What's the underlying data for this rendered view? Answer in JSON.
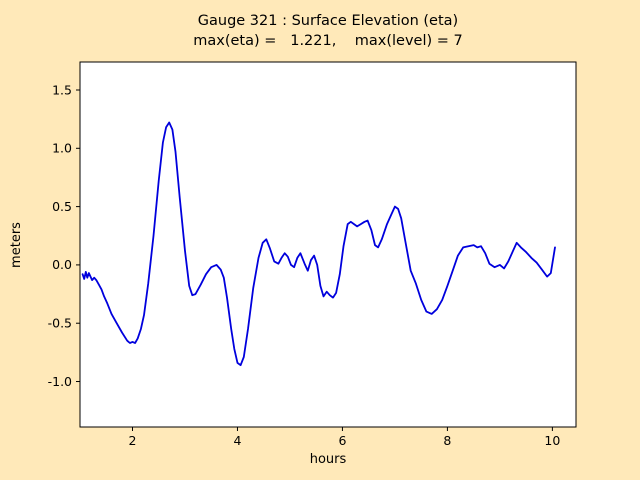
{
  "header": {
    "title": "Gauge 321 : Surface Elevation (eta)",
    "subtitle": "max(eta) =   1.221,    max(level) = 7"
  },
  "chart_data": {
    "type": "line",
    "title": "Gauge 321 : Surface Elevation (eta)",
    "subtitle": "max(eta) =   1.221,    max(level) = 7",
    "max_eta": 1.221,
    "max_level": 7,
    "xlabel": "hours",
    "ylabel": "meters",
    "xlim": [
      1.0,
      10.45
    ],
    "ylim": [
      -1.39,
      1.74
    ],
    "xticks": [
      2,
      4,
      6,
      8,
      10
    ],
    "xtick_labels": [
      "2",
      "4",
      "6",
      "8",
      "10"
    ],
    "yticks": [
      -1.0,
      -0.5,
      0.0,
      0.5,
      1.0,
      1.5
    ],
    "ytick_labels": [
      "-1.0",
      "-0.5",
      "0.0",
      "0.5",
      "1.0",
      "1.5"
    ],
    "grid": false,
    "legend": null,
    "line_color": "#0000dd",
    "line_width": 1.8,
    "background_color": "#ffe9b9",
    "plot_background": "#ffffff",
    "axis_color": "#000000",
    "series": [
      {
        "name": "eta",
        "x": [
          1.05,
          1.08,
          1.11,
          1.14,
          1.17,
          1.2,
          1.23,
          1.27,
          1.31,
          1.36,
          1.41,
          1.46,
          1.52,
          1.6,
          1.7,
          1.8,
          1.9,
          1.95,
          2.0,
          2.05,
          2.1,
          2.16,
          2.22,
          2.3,
          2.4,
          2.5,
          2.58,
          2.64,
          2.7,
          2.76,
          2.82,
          2.9,
          3.0,
          3.08,
          3.14,
          3.2,
          3.3,
          3.4,
          3.5,
          3.6,
          3.68,
          3.74,
          3.8,
          3.88,
          3.94,
          4.0,
          4.06,
          4.12,
          4.2,
          4.3,
          4.4,
          4.48,
          4.55,
          4.62,
          4.7,
          4.78,
          4.84,
          4.9,
          4.96,
          5.02,
          5.08,
          5.14,
          5.2,
          5.28,
          5.34,
          5.4,
          5.46,
          5.52,
          5.58,
          5.64,
          5.7,
          5.76,
          5.82,
          5.88,
          5.95,
          6.02,
          6.1,
          6.16,
          6.22,
          6.28,
          6.35,
          6.42,
          6.48,
          6.55,
          6.62,
          6.68,
          6.75,
          6.85,
          6.93,
          7.0,
          7.06,
          7.12,
          7.2,
          7.3,
          7.4,
          7.5,
          7.6,
          7.7,
          7.8,
          7.9,
          8.0,
          8.1,
          8.2,
          8.3,
          8.4,
          8.5,
          8.57,
          8.64,
          8.72,
          8.8,
          8.9,
          9.0,
          9.08,
          9.16,
          9.25,
          9.32,
          9.4,
          9.5,
          9.6,
          9.7,
          9.8,
          9.9,
          9.97,
          10.05
        ],
        "y": [
          -0.08,
          -0.12,
          -0.06,
          -0.11,
          -0.07,
          -0.1,
          -0.13,
          -0.11,
          -0.13,
          -0.17,
          -0.21,
          -0.27,
          -0.33,
          -0.42,
          -0.5,
          -0.58,
          -0.65,
          -0.67,
          -0.66,
          -0.67,
          -0.63,
          -0.55,
          -0.43,
          -0.16,
          0.25,
          0.72,
          1.05,
          1.18,
          1.221,
          1.16,
          0.97,
          0.58,
          0.12,
          -0.18,
          -0.26,
          -0.25,
          -0.17,
          -0.08,
          -0.02,
          0.0,
          -0.04,
          -0.11,
          -0.28,
          -0.55,
          -0.72,
          -0.84,
          -0.86,
          -0.79,
          -0.55,
          -0.2,
          0.06,
          0.19,
          0.22,
          0.14,
          0.03,
          0.01,
          0.06,
          0.1,
          0.07,
          0.0,
          -0.02,
          0.06,
          0.1,
          0.01,
          -0.05,
          0.04,
          0.08,
          0.0,
          -0.18,
          -0.27,
          -0.23,
          -0.26,
          -0.28,
          -0.24,
          -0.08,
          0.16,
          0.35,
          0.37,
          0.35,
          0.33,
          0.35,
          0.37,
          0.38,
          0.3,
          0.17,
          0.15,
          0.22,
          0.35,
          0.43,
          0.5,
          0.48,
          0.4,
          0.2,
          -0.05,
          -0.16,
          -0.3,
          -0.4,
          -0.42,
          -0.38,
          -0.3,
          -0.18,
          -0.05,
          0.08,
          0.15,
          0.16,
          0.17,
          0.15,
          0.16,
          0.1,
          0.01,
          -0.02,
          0.0,
          -0.03,
          0.03,
          0.12,
          0.19,
          0.15,
          0.11,
          0.06,
          0.02,
          -0.04,
          -0.1,
          -0.07,
          0.15
        ]
      }
    ]
  }
}
